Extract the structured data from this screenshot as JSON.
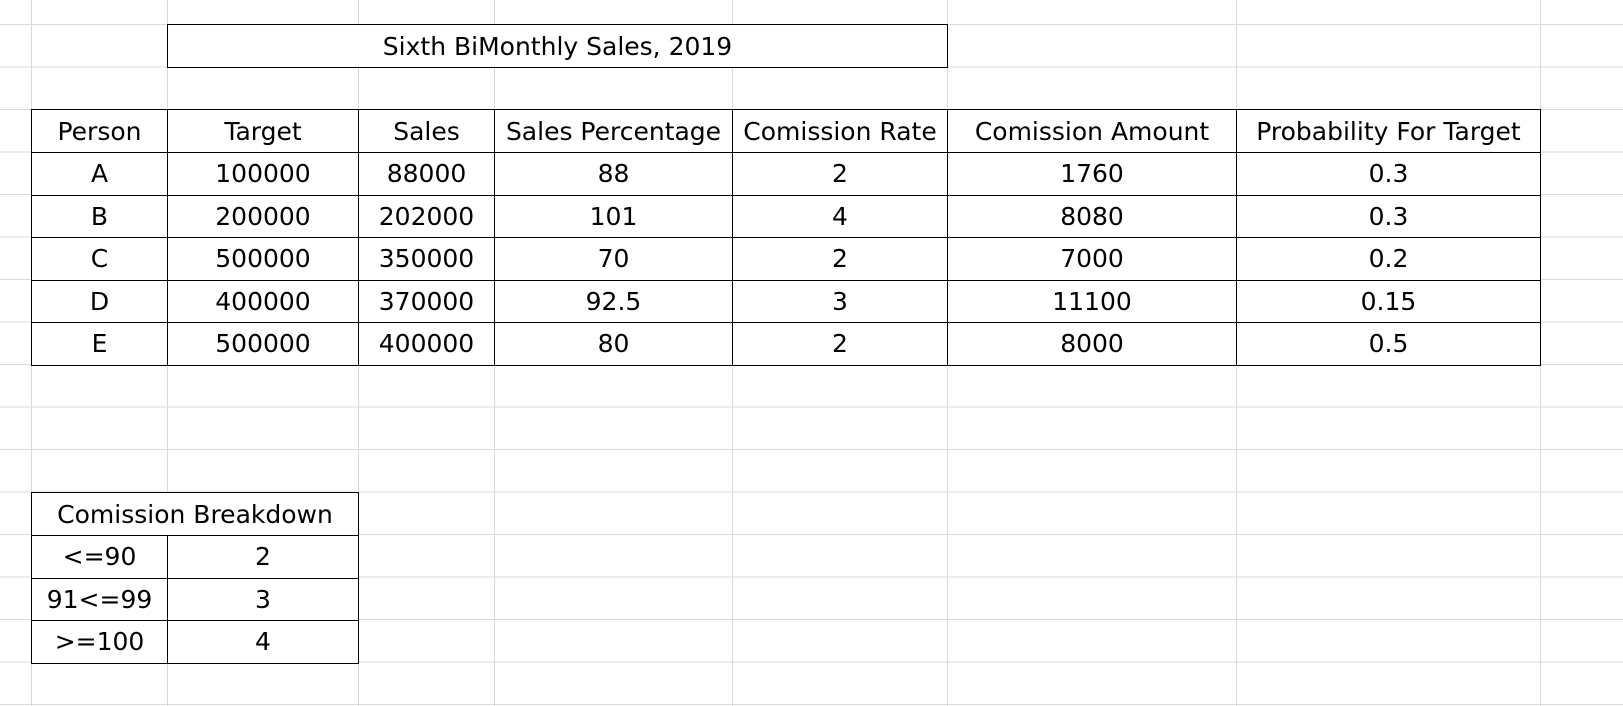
{
  "sheet": {
    "title": "Sixth BiMonthly Sales, 2019",
    "headers": [
      "Person",
      "Target",
      "Sales",
      "Sales Percentage",
      "Comission Rate",
      "Comission Amount",
      "Probability For Target"
    ],
    "rows": [
      [
        "A",
        "100000",
        "88000",
        "88",
        "2",
        "1760",
        "0.3"
      ],
      [
        "B",
        "200000",
        "202000",
        "101",
        "4",
        "8080",
        "0.3"
      ],
      [
        "C",
        "500000",
        "350000",
        "70",
        "2",
        "7000",
        "0.2"
      ],
      [
        "D",
        "400000",
        "370000",
        "92.5",
        "3",
        "11100",
        "0.15"
      ],
      [
        "E",
        "500000",
        "400000",
        "80",
        "2",
        "8000",
        "0.5"
      ]
    ],
    "breakdown": {
      "title": "Comission Breakdown",
      "rows": [
        [
          "<=90",
          "2"
        ],
        [
          "91<=99",
          "3"
        ],
        [
          ">=100",
          "4"
        ]
      ]
    }
  }
}
